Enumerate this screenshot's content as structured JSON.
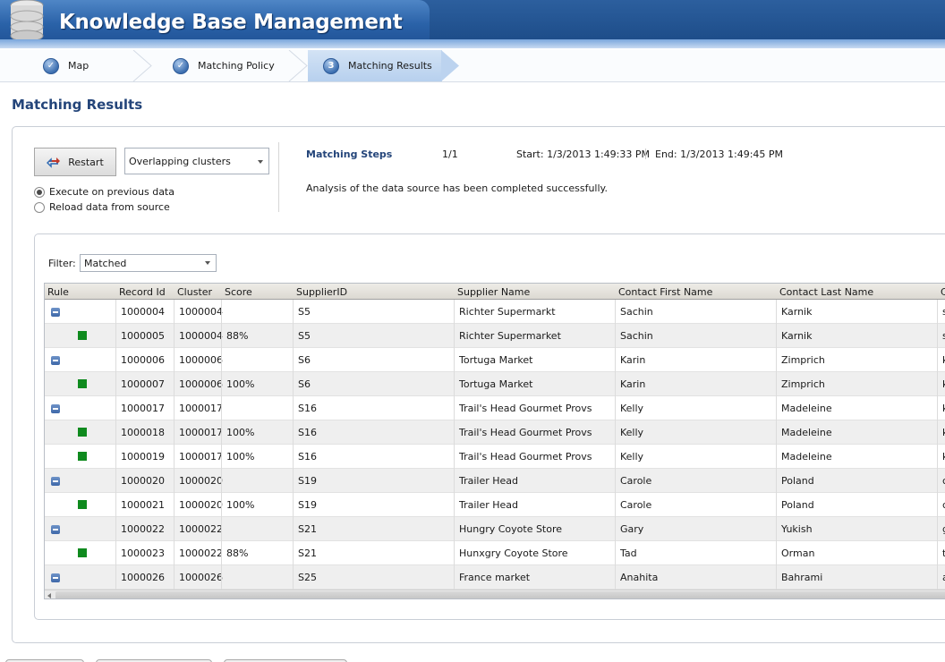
{
  "app": {
    "title": "Knowledge Base Management"
  },
  "steps": [
    {
      "label": "Map",
      "state": "done"
    },
    {
      "label": "Matching Policy",
      "state": "done"
    },
    {
      "label": "Matching Results",
      "state": "active",
      "number": "3"
    }
  ],
  "page": {
    "title": "Matching Results"
  },
  "controls": {
    "restart_label": "Restart",
    "cluster_mode": "Overlapping clusters",
    "radio_options": [
      {
        "label": "Execute on previous data",
        "checked": true
      },
      {
        "label": "Reload data from source",
        "checked": false
      }
    ]
  },
  "matching": {
    "label": "Matching Steps",
    "count": "1/1",
    "start": "Start: 1/3/2013 1:49:33 PM",
    "end": "End: 1/3/2013 1:49:45 PM",
    "status": "Analysis of the data source has been completed successfully."
  },
  "filter": {
    "label": "Filter:",
    "value": "Matched"
  },
  "grid": {
    "columns": [
      "Rule",
      "Record Id",
      "Cluster",
      "Score",
      "SupplierID",
      "Supplier Name",
      "Contact First Name",
      "Contact Last Name",
      "C"
    ],
    "rows": [
      {
        "type": "parent",
        "record_id": "1000004",
        "cluster": "1000004",
        "score": "",
        "supplier_id": "S5",
        "supplier_name": "Richter Supermarkt",
        "first_name": "Sachin",
        "last_name": "Karnik",
        "extra": "s"
      },
      {
        "type": "child",
        "record_id": "1000005",
        "cluster": "1000004",
        "score": "88%",
        "supplier_id": "S5",
        "supplier_name": "Richter Supermarket",
        "first_name": "Sachin",
        "last_name": "Karnik",
        "extra": "s"
      },
      {
        "type": "parent",
        "record_id": "1000006",
        "cluster": "1000006",
        "score": "",
        "supplier_id": "S6",
        "supplier_name": "Tortuga Market",
        "first_name": "Karin",
        "last_name": "Zimprich",
        "extra": "k"
      },
      {
        "type": "child",
        "record_id": "1000007",
        "cluster": "1000006",
        "score": "100%",
        "supplier_id": "S6",
        "supplier_name": "Tortuga Market",
        "first_name": "Karin",
        "last_name": "Zimprich",
        "extra": "k"
      },
      {
        "type": "parent",
        "record_id": "1000017",
        "cluster": "1000017",
        "score": "",
        "supplier_id": "S16",
        "supplier_name": "Trail's Head Gourmet Provs",
        "first_name": "Kelly",
        "last_name": "Madeleine",
        "extra": "k"
      },
      {
        "type": "child",
        "record_id": "1000018",
        "cluster": "1000017",
        "score": "100%",
        "supplier_id": "S16",
        "supplier_name": "Trail's Head Gourmet Provs",
        "first_name": "Kelly",
        "last_name": "Madeleine",
        "extra": "k"
      },
      {
        "type": "child",
        "record_id": "1000019",
        "cluster": "1000017",
        "score": "100%",
        "supplier_id": "S16",
        "supplier_name": "Trail's Head Gourmet Provs",
        "first_name": "Kelly",
        "last_name": "Madeleine",
        "extra": "k"
      },
      {
        "type": "parent",
        "record_id": "1000020",
        "cluster": "1000020",
        "score": "",
        "supplier_id": "S19",
        "supplier_name": "Trailer Head",
        "first_name": "Carole",
        "last_name": "Poland",
        "extra": "c"
      },
      {
        "type": "child",
        "record_id": "1000021",
        "cluster": "1000020",
        "score": "100%",
        "supplier_id": "S19",
        "supplier_name": "Trailer Head",
        "first_name": "Carole",
        "last_name": "Poland",
        "extra": "c"
      },
      {
        "type": "parent",
        "record_id": "1000022",
        "cluster": "1000022",
        "score": "",
        "supplier_id": "S21",
        "supplier_name": "Hungry Coyote Store",
        "first_name": "Gary",
        "last_name": "Yukish",
        "extra": "g"
      },
      {
        "type": "child",
        "record_id": "1000023",
        "cluster": "1000022",
        "score": "88%",
        "supplier_id": "S21",
        "supplier_name": "Hunxgry Coyote Store",
        "first_name": "Tad",
        "last_name": "Orman",
        "extra": "t"
      },
      {
        "type": "parent",
        "record_id": "1000026",
        "cluster": "1000026",
        "score": "",
        "supplier_id": "S25",
        "supplier_name": "France market",
        "first_name": "Anahita",
        "last_name": "Bahrami",
        "extra": "a"
      }
    ]
  }
}
